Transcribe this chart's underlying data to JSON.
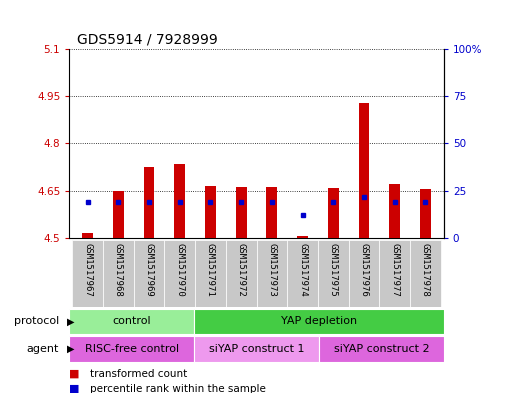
{
  "title": "GDS5914 / 7928999",
  "samples": [
    "GSM1517967",
    "GSM1517968",
    "GSM1517969",
    "GSM1517970",
    "GSM1517971",
    "GSM1517972",
    "GSM1517973",
    "GSM1517974",
    "GSM1517975",
    "GSM1517976",
    "GSM1517977",
    "GSM1517978"
  ],
  "bar_heights": [
    4.515,
    4.648,
    4.725,
    4.735,
    4.665,
    4.662,
    4.66,
    4.505,
    4.657,
    4.93,
    4.67,
    4.655
  ],
  "blue_dots_y": [
    4.615,
    4.615,
    4.615,
    4.615,
    4.615,
    4.615,
    4.615,
    4.572,
    4.615,
    4.63,
    4.615,
    4.615
  ],
  "bar_bottom": 4.5,
  "ylim": [
    4.5,
    5.1
  ],
  "yticks_left": [
    4.5,
    4.65,
    4.8,
    4.95,
    5.1
  ],
  "ytick_labels_left": [
    "4.5",
    "4.65",
    "4.8",
    "4.95",
    "5.1"
  ],
  "yticks_right_pct": [
    0,
    25,
    50,
    75,
    100
  ],
  "ytick_labels_right": [
    "0",
    "25",
    "50",
    "75",
    "100%"
  ],
  "bar_color": "#cc0000",
  "dot_color": "#0000cc",
  "plot_bg": "#d8d8d8",
  "xtick_bg": "#c8c8c8",
  "protocol_groups": [
    {
      "label": "control",
      "start": 0,
      "end": 4,
      "color": "#99ee99"
    },
    {
      "label": "YAP depletion",
      "start": 4,
      "end": 12,
      "color": "#44cc44"
    }
  ],
  "agent_groups": [
    {
      "label": "RISC-free control",
      "start": 0,
      "end": 4,
      "color": "#dd66dd"
    },
    {
      "label": "siYAP construct 1",
      "start": 4,
      "end": 8,
      "color": "#ee99ee"
    },
    {
      "label": "siYAP construct 2",
      "start": 8,
      "end": 12,
      "color": "#dd66dd"
    }
  ],
  "protocol_label": "protocol",
  "agent_label": "agent",
  "legend_items": [
    {
      "label": "transformed count",
      "color": "#cc0000"
    },
    {
      "label": "percentile rank within the sample",
      "color": "#0000cc"
    }
  ],
  "title_fontsize": 10,
  "tick_fontsize": 7.5,
  "bar_width": 0.35
}
